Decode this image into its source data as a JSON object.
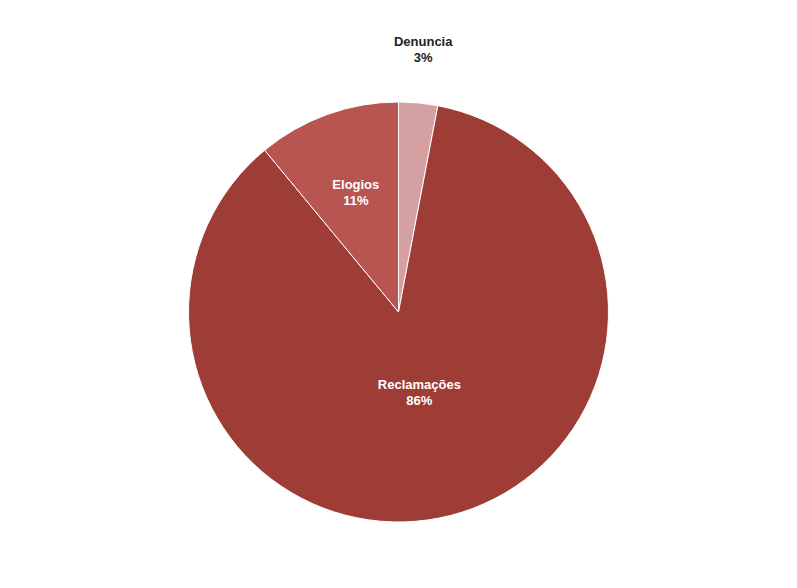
{
  "chart_data": {
    "type": "pie",
    "categories": [
      "Denuncia",
      "Reclamações",
      "Elogios"
    ],
    "values": [
      3,
      86,
      11
    ],
    "value_labels": [
      "3%",
      "86%",
      "11%"
    ],
    "colors": [
      "#d4a0a2",
      "#9e3d35",
      "#b85550"
    ],
    "data_labels": true
  }
}
